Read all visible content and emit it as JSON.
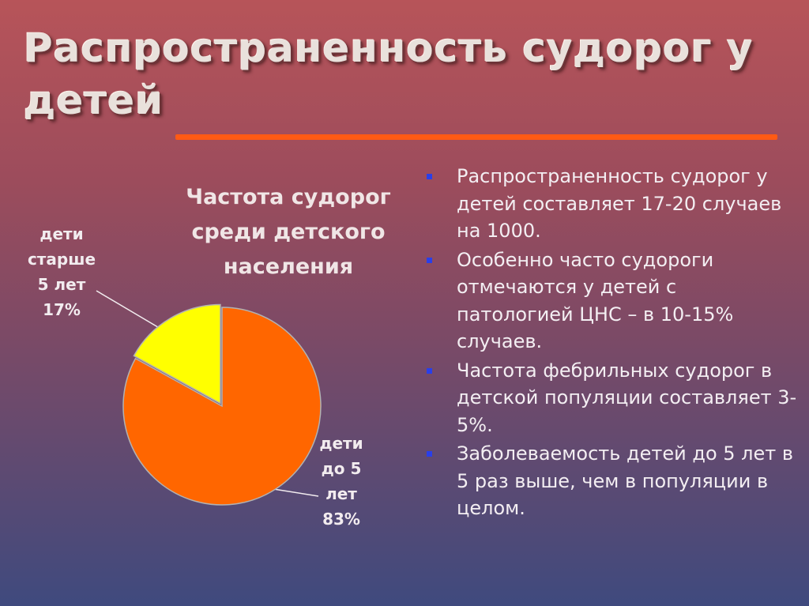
{
  "slide": {
    "title": "Распространенность судорог у детей"
  },
  "colors": {
    "accent_rule": "#ff5a14",
    "slice_younger": "#ff6600",
    "slice_older": "#ffff00",
    "bullet": "#2a3fe8"
  },
  "chart_data": {
    "type": "pie",
    "title": "Частота судорог среди детского населения",
    "slices": [
      {
        "label_lines": [
          "дети",
          "старше",
          "5 лет"
        ],
        "value_label": "17%",
        "value": 17,
        "color": "#ffff00"
      },
      {
        "label_lines": [
          "дети",
          "до 5",
          "лет"
        ],
        "value_label": "83%",
        "value": 83,
        "color": "#ff6600"
      }
    ]
  },
  "bullets": [
    "Распространенность судорог у детей составляет 17-20 случаев на 1000.",
    "Особенно часто судороги отмечаются у детей с патологией ЦНС – в 10-15% случаев.",
    "Частота фебрильных судорог в детской популяции составляет 3-5%.",
    "Заболеваемость детей до 5 лет в 5 раз выше, чем в популяции в целом."
  ]
}
